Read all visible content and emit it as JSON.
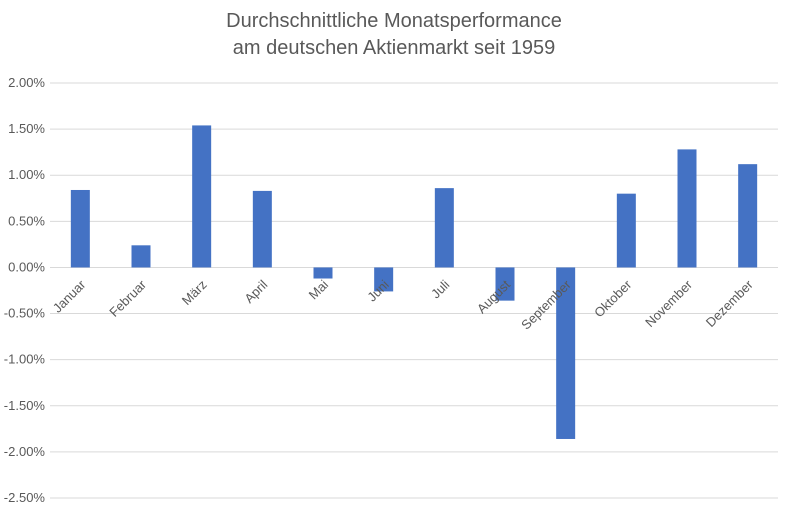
{
  "chart_data": {
    "type": "bar",
    "title_lines": [
      "Durchschnittliche Monatsperformance",
      "am deutschen Aktienmarkt seit 1959"
    ],
    "xlabel": "",
    "ylabel": "",
    "categories": [
      "Januar",
      "Februar",
      "März",
      "April",
      "Mai",
      "Juni",
      "Juli",
      "August",
      "September",
      "Oktober",
      "November",
      "Dezember"
    ],
    "values": [
      0.0084,
      0.0024,
      0.0154,
      0.0083,
      -0.0012,
      -0.0026,
      0.0086,
      -0.0036,
      -0.0186,
      0.008,
      0.0128,
      0.0112
    ],
    "ylim": [
      -0.025,
      0.02
    ],
    "yticks": [
      0.02,
      0.015,
      0.01,
      0.005,
      0.0,
      -0.005,
      -0.01,
      -0.015,
      -0.02,
      -0.025
    ],
    "ytick_labels": [
      "2.00%",
      "1.50%",
      "1.00%",
      "0.50%",
      "0.00%",
      "-0.50%",
      "-1.00%",
      "-1.50%",
      "-2.00%",
      "-2.50%"
    ],
    "grid": true,
    "legend": "none",
    "bar_color": "#4472C4",
    "grid_color": "#D9D9D9",
    "text_color": "#595959"
  }
}
